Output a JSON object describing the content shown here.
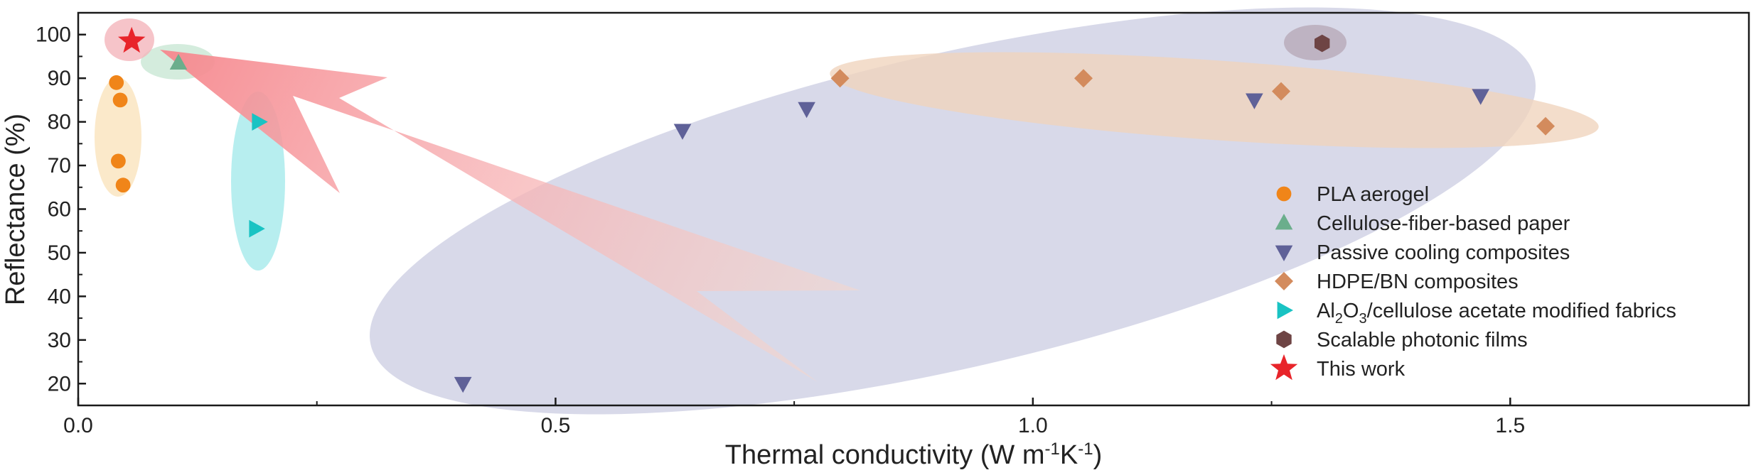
{
  "chart_data": {
    "type": "scatter",
    "title": "",
    "xlabel": {
      "main": "Thermal conductivity (W m",
      "sup1": "-1",
      "mid": "K",
      "sup2": "-1",
      "end": ")"
    },
    "ylabel": "Reflectance (%)",
    "xlim": [
      0.0,
      1.75
    ],
    "ylim": [
      15,
      105
    ],
    "xticks": [
      {
        "value": 0.0,
        "label": "0.0"
      },
      {
        "value": 0.5,
        "label": "0.5"
      },
      {
        "value": 1.0,
        "label": "1.0"
      },
      {
        "value": 1.5,
        "label": "1.5"
      }
    ],
    "yticks": [
      {
        "value": 20,
        "label": "20"
      },
      {
        "value": 30,
        "label": "30"
      },
      {
        "value": 40,
        "label": "40"
      },
      {
        "value": 50,
        "label": "50"
      },
      {
        "value": 60,
        "label": "60"
      },
      {
        "value": 70,
        "label": "70"
      },
      {
        "value": 80,
        "label": "80"
      },
      {
        "value": 90,
        "label": "90"
      },
      {
        "value": 100,
        "label": "100"
      }
    ],
    "grid": false,
    "legend_position": "right",
    "series": [
      {
        "name": "PLA aerogel",
        "marker": "circle",
        "color": "#F08519",
        "x": [
          0.04,
          0.044,
          0.042,
          0.047
        ],
        "y": [
          89,
          85,
          71,
          65.5
        ]
      },
      {
        "name": "Cellulose-fiber-based paper",
        "marker": "triangle-up",
        "color": "#6BAE8C",
        "x": [
          0.105
        ],
        "y": [
          93.5
        ]
      },
      {
        "name": "Passive cooling composites",
        "marker": "triangle-down",
        "color": "#5F6198",
        "x": [
          0.403,
          0.633,
          0.763,
          1.232,
          1.469
        ],
        "y": [
          20,
          78,
          83,
          85,
          86
        ]
      },
      {
        "name": "HDPE/BN composites",
        "marker": "diamond",
        "color": "#D38B5D",
        "x": [
          0.798,
          1.053,
          1.26,
          1.537
        ],
        "y": [
          90,
          90,
          87,
          79
        ]
      },
      {
        "name": {
          "pre": "Al",
          "sub1": "2",
          "mid": "O",
          "sub2": "3",
          "post": "/cellulose acetate modified fabrics"
        },
        "marker": "triangle-right",
        "color": "#19C3C3",
        "x": [
          0.189,
          0.186
        ],
        "y": [
          80,
          55.5
        ]
      },
      {
        "name": "Scalable photonic films",
        "marker": "hexagon",
        "color": "#6E4444",
        "x": [
          1.303
        ],
        "y": [
          98
        ]
      },
      {
        "name": "This work",
        "marker": "star",
        "color": "#E8242A",
        "x": [
          0.056
        ],
        "y": [
          98.5
        ]
      }
    ]
  }
}
